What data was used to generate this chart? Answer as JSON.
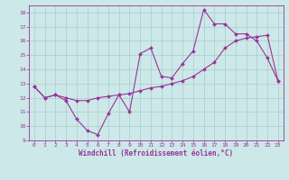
{
  "x": [
    0,
    1,
    2,
    3,
    4,
    5,
    6,
    7,
    8,
    9,
    10,
    11,
    12,
    13,
    14,
    15,
    16,
    17,
    18,
    19,
    20,
    21,
    22,
    23
  ],
  "line1": [
    12.8,
    12.0,
    12.2,
    11.8,
    10.5,
    9.7,
    9.4,
    10.9,
    12.2,
    11.0,
    15.1,
    15.5,
    13.5,
    13.4,
    14.4,
    15.3,
    18.2,
    17.2,
    17.2,
    16.5,
    16.5,
    16.0,
    14.8,
    13.2
  ],
  "line2": [
    12.8,
    12.0,
    12.2,
    12.0,
    11.8,
    11.8,
    12.0,
    12.1,
    12.2,
    12.3,
    12.5,
    12.7,
    12.8,
    13.0,
    13.2,
    13.5,
    14.0,
    14.5,
    15.5,
    16.0,
    16.2,
    16.3,
    16.4,
    13.2
  ],
  "color": "#993399",
  "bg_color": "#cce8e8",
  "grid_color": "#aacccc",
  "xlabel": "Windchill (Refroidissement éolien,°C)",
  "ylim": [
    9,
    18.5
  ],
  "xlim": [
    -0.5,
    23.5
  ],
  "yticks": [
    9,
    10,
    11,
    12,
    13,
    14,
    15,
    16,
    17,
    18
  ],
  "xticks": [
    0,
    1,
    2,
    3,
    4,
    5,
    6,
    7,
    8,
    9,
    10,
    11,
    12,
    13,
    14,
    15,
    16,
    17,
    18,
    19,
    20,
    21,
    22,
    23
  ],
  "tick_fontsize": 4.5,
  "xlabel_fontsize": 5.5
}
